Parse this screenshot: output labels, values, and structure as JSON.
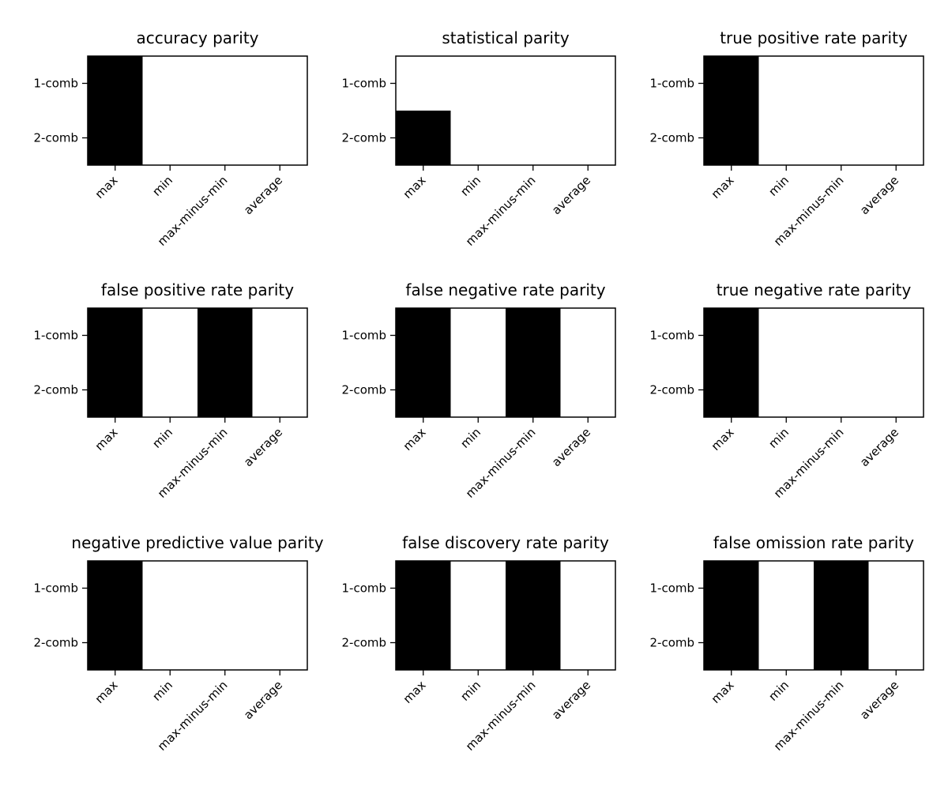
{
  "chart_data": [
    {
      "type": "heatmap",
      "title": "accuracy parity",
      "xticklabels": [
        "max",
        "min",
        "max-minus-min",
        "average"
      ],
      "yticklabels": [
        "1-comb",
        "2-comb"
      ],
      "values": [
        [
          1,
          0,
          0,
          0
        ],
        [
          1,
          0,
          0,
          0
        ]
      ],
      "colors": {
        "1": "#000000",
        "0": "#ffffff"
      }
    },
    {
      "type": "heatmap",
      "title": "statistical parity",
      "xticklabels": [
        "max",
        "min",
        "max-minus-min",
        "average"
      ],
      "yticklabels": [
        "1-comb",
        "2-comb"
      ],
      "values": [
        [
          0,
          0,
          0,
          0
        ],
        [
          1,
          0,
          0,
          0
        ]
      ],
      "colors": {
        "1": "#000000",
        "0": "#ffffff"
      }
    },
    {
      "type": "heatmap",
      "title": "true positive rate parity",
      "xticklabels": [
        "max",
        "min",
        "max-minus-min",
        "average"
      ],
      "yticklabels": [
        "1-comb",
        "2-comb"
      ],
      "values": [
        [
          1,
          0,
          0,
          0
        ],
        [
          1,
          0,
          0,
          0
        ]
      ],
      "colors": {
        "1": "#000000",
        "0": "#ffffff"
      }
    },
    {
      "type": "heatmap",
      "title": "false positive rate parity",
      "xticklabels": [
        "max",
        "min",
        "max-minus-min",
        "average"
      ],
      "yticklabels": [
        "1-comb",
        "2-comb"
      ],
      "values": [
        [
          1,
          0,
          1,
          0
        ],
        [
          1,
          0,
          1,
          0
        ]
      ],
      "colors": {
        "1": "#000000",
        "0": "#ffffff"
      }
    },
    {
      "type": "heatmap",
      "title": "false negative rate parity",
      "xticklabels": [
        "max",
        "min",
        "max-minus-min",
        "average"
      ],
      "yticklabels": [
        "1-comb",
        "2-comb"
      ],
      "values": [
        [
          1,
          0,
          1,
          0
        ],
        [
          1,
          0,
          1,
          0
        ]
      ],
      "colors": {
        "1": "#000000",
        "0": "#ffffff"
      }
    },
    {
      "type": "heatmap",
      "title": "true negative rate parity",
      "xticklabels": [
        "max",
        "min",
        "max-minus-min",
        "average"
      ],
      "yticklabels": [
        "1-comb",
        "2-comb"
      ],
      "values": [
        [
          1,
          0,
          0,
          0
        ],
        [
          1,
          0,
          0,
          0
        ]
      ],
      "colors": {
        "1": "#000000",
        "0": "#ffffff"
      }
    },
    {
      "type": "heatmap",
      "title": "negative predictive value parity",
      "xticklabels": [
        "max",
        "min",
        "max-minus-min",
        "average"
      ],
      "yticklabels": [
        "1-comb",
        "2-comb"
      ],
      "values": [
        [
          1,
          0,
          0,
          0
        ],
        [
          1,
          0,
          0,
          0
        ]
      ],
      "colors": {
        "1": "#000000",
        "0": "#ffffff"
      }
    },
    {
      "type": "heatmap",
      "title": "false discovery rate parity",
      "xticklabels": [
        "max",
        "min",
        "max-minus-min",
        "average"
      ],
      "yticklabels": [
        "1-comb",
        "2-comb"
      ],
      "values": [
        [
          1,
          0,
          1,
          0
        ],
        [
          1,
          0,
          1,
          0
        ]
      ],
      "colors": {
        "1": "#000000",
        "0": "#ffffff"
      }
    },
    {
      "type": "heatmap",
      "title": "false omission rate parity",
      "xticklabels": [
        "max",
        "min",
        "max-minus-min",
        "average"
      ],
      "yticklabels": [
        "1-comb",
        "2-comb"
      ],
      "values": [
        [
          1,
          0,
          1,
          0
        ],
        [
          1,
          0,
          1,
          0
        ]
      ],
      "colors": {
        "1": "#000000",
        "0": "#ffffff"
      }
    }
  ]
}
